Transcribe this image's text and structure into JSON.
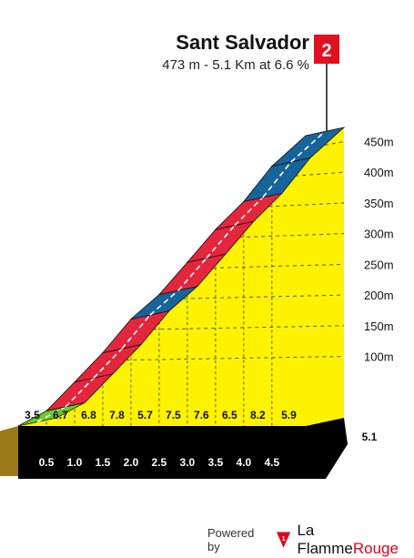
{
  "climb": {
    "name": "Sant Salvador",
    "summary": "473 m - 5.1 Km at 6.6 %",
    "category": "2",
    "category_color": "#e2111f"
  },
  "footer": {
    "powered_label": "Powered by",
    "brand_part1": "La Flamme",
    "brand_part2": "Rouge",
    "logo_icon": "flame-rouge-flag-icon"
  },
  "colors": {
    "fill": "#fdf300",
    "gradient_red": "#e3263c",
    "gradient_blue": "#17649a",
    "gradient_green": "#6bcc24",
    "base": "#000000",
    "side": "#9b7a18"
  },
  "chart_data": {
    "type": "area",
    "title": "Sant Salvador",
    "subtitle": "473 m - 5.1 Km at 6.6 %",
    "xlabel": "",
    "ylabel": "",
    "ylim": [
      0,
      473
    ],
    "xlim": [
      0,
      5.1
    ],
    "y_ticks": [
      "100m",
      "150m",
      "200m",
      "250m",
      "300m",
      "350m",
      "400m",
      "450m"
    ],
    "y_tick_values": [
      100,
      150,
      200,
      250,
      300,
      350,
      400,
      450
    ],
    "x_ticks": [
      "0.5",
      "1.0",
      "1.5",
      "2.0",
      "2.5",
      "3.0",
      "3.5",
      "4.0",
      "4.5",
      "5.1"
    ],
    "x_tick_values": [
      0.5,
      1.0,
      1.5,
      2.0,
      2.5,
      3.0,
      3.5,
      4.0,
      4.5,
      5.1
    ],
    "gradient_labels": [
      "3.5",
      "6.7",
      "6.8",
      "7.8",
      "5.7",
      "7.5",
      "7.6",
      "6.5",
      "8.2",
      "5.9"
    ],
    "segments": [
      {
        "from_km": 0.0,
        "to_km": 0.5,
        "gradient_pct": 3.5
      },
      {
        "from_km": 0.5,
        "to_km": 1.0,
        "gradient_pct": 6.7
      },
      {
        "from_km": 1.0,
        "to_km": 1.5,
        "gradient_pct": 6.8
      },
      {
        "from_km": 1.5,
        "to_km": 2.0,
        "gradient_pct": 7.8
      },
      {
        "from_km": 2.0,
        "to_km": 2.5,
        "gradient_pct": 5.7
      },
      {
        "from_km": 2.5,
        "to_km": 3.0,
        "gradient_pct": 7.5
      },
      {
        "from_km": 3.0,
        "to_km": 3.5,
        "gradient_pct": 7.6
      },
      {
        "from_km": 3.5,
        "to_km": 4.0,
        "gradient_pct": 6.5
      },
      {
        "from_km": 4.0,
        "to_km": 4.5,
        "gradient_pct": 8.2
      },
      {
        "from_km": 4.5,
        "to_km": 5.1,
        "gradient_pct": 5.9
      }
    ],
    "grid": true,
    "grid_style": "dashed"
  }
}
